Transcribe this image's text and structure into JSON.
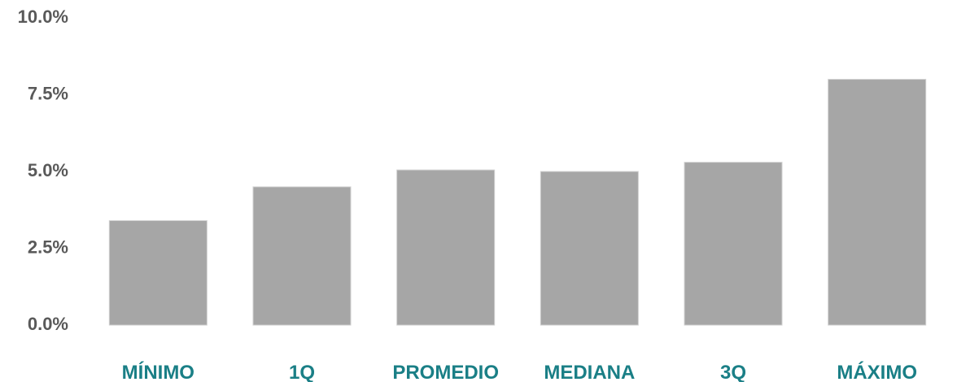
{
  "chart_data": {
    "type": "bar",
    "categories": [
      "MÍNIMO",
      "1Q",
      "PROMEDIO",
      "MEDIANA",
      "3Q",
      "MÁXIMO"
    ],
    "values": [
      3.4,
      4.5,
      5.05,
      5.0,
      5.3,
      8.0
    ],
    "ylim": [
      0,
      10
    ],
    "yticks": [
      0,
      2.5,
      5,
      7.5,
      10
    ],
    "ytick_labels": [
      "0.0%",
      "2.5%",
      "5.0%",
      "7.5%",
      "10.0%"
    ],
    "grid": false,
    "legend": "none",
    "colors": {
      "bar": "#a6a6a6",
      "category_label": "#1a7f86",
      "tick_label": "#595959"
    }
  }
}
